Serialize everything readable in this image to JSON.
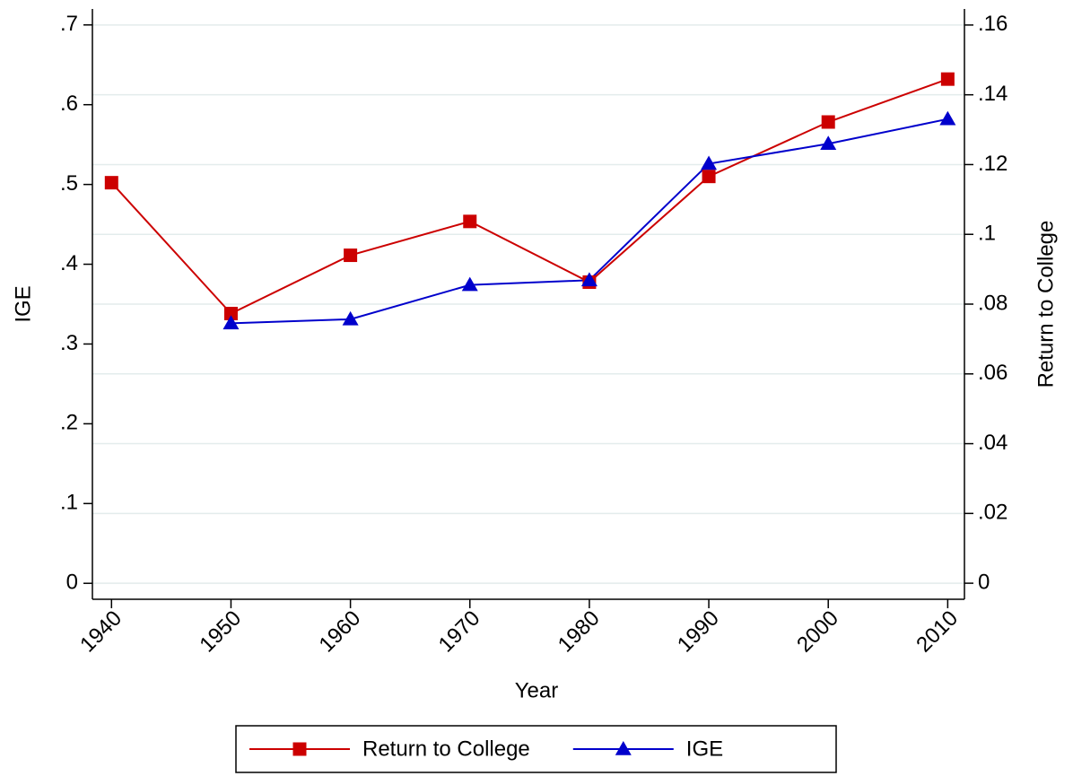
{
  "chart_data": {
    "type": "line",
    "xlabel": "Year",
    "ylabel": "IGE",
    "y2label": "Return to College",
    "x": [
      1940,
      1950,
      1960,
      1970,
      1980,
      1990,
      2000,
      2010
    ],
    "xlim": [
      1938.4,
      2011.4
    ],
    "xticks": [
      1940,
      1950,
      1960,
      1970,
      1980,
      1990,
      2000,
      2010
    ],
    "ylim": [
      -0.02,
      0.72
    ],
    "yticks": [
      {
        "value": 0,
        "label": "0"
      },
      {
        "value": 0.1,
        "label": ".1"
      },
      {
        "value": 0.2,
        "label": ".2"
      },
      {
        "value": 0.3,
        "label": ".3"
      },
      {
        "value": 0.4,
        "label": ".4"
      },
      {
        "value": 0.5,
        "label": ".5"
      },
      {
        "value": 0.6,
        "label": ".6"
      },
      {
        "value": 0.7,
        "label": ".7"
      }
    ],
    "y2lim": [
      -0.0046,
      0.1646
    ],
    "y2ticks": [
      {
        "value": 0,
        "label": "0"
      },
      {
        "value": 0.02,
        "label": ".02"
      },
      {
        "value": 0.04,
        "label": ".04"
      },
      {
        "value": 0.06,
        "label": ".06"
      },
      {
        "value": 0.08,
        "label": ".08"
      },
      {
        "value": 0.1,
        "label": ".1"
      },
      {
        "value": 0.12,
        "label": ".12"
      },
      {
        "value": 0.14,
        "label": ".14"
      },
      {
        "value": 0.16,
        "label": ".16"
      }
    ],
    "grid": "y2",
    "legend": "bottom",
    "series": [
      {
        "name": "Return to College",
        "color": "#cc0000",
        "marker": "square",
        "axis": "y2",
        "values": [
          0.1148,
          0.0773,
          0.094,
          0.1037,
          0.0863,
          0.1166,
          0.1322,
          0.1445
        ]
      },
      {
        "name": "IGE",
        "color": "#0000cc",
        "marker": "triangle",
        "axis": "y",
        "values": [
          null,
          0.326,
          0.331,
          0.374,
          0.38,
          0.526,
          0.551,
          0.582
        ]
      }
    ]
  }
}
